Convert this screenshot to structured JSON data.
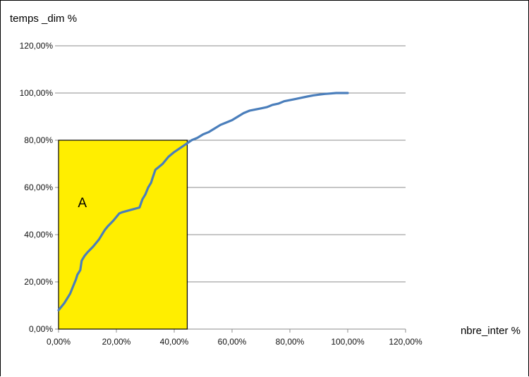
{
  "chart_data": {
    "type": "line",
    "xlabel": "nbre_inter %",
    "ylabel": "temps _dim %",
    "xlim": [
      0,
      120
    ],
    "ylim": [
      0,
      120
    ],
    "x_ticks": [
      "0,00%",
      "20,00%",
      "40,00%",
      "60,00%",
      "80,00%",
      "100,00%",
      "120,00%"
    ],
    "y_ticks": [
      "0,00%",
      "20,00%",
      "40,00%",
      "60,00%",
      "80,00%",
      "100,00%",
      "120,00%"
    ],
    "grid": "horizontal",
    "series": [
      {
        "color": "#4a7ebb",
        "x": [
          0,
          2,
          4,
          5,
          6,
          6.5,
          7.5,
          8,
          9,
          10,
          12,
          14,
          16,
          17,
          19,
          21,
          22,
          25,
          28,
          29,
          30,
          31,
          32,
          32.5,
          33.5,
          35,
          36,
          37,
          38,
          40,
          43,
          46,
          48,
          50,
          52,
          54,
          56,
          58,
          60,
          62,
          64,
          66,
          68,
          70,
          72,
          74,
          76,
          78,
          80,
          82,
          84,
          86,
          88,
          90,
          92,
          94,
          96,
          98,
          100
        ],
        "y": [
          8,
          11,
          15,
          18,
          21,
          23,
          25,
          29,
          31,
          32.5,
          35,
          38,
          42,
          43.5,
          46,
          49,
          49.5,
          50.5,
          51.5,
          55,
          57,
          60,
          62,
          64,
          67.5,
          69,
          70,
          71.5,
          73,
          75,
          77.5,
          80,
          81,
          82.5,
          83.5,
          85,
          86.5,
          87.5,
          88.5,
          90,
          91.5,
          92.5,
          93,
          93.5,
          94,
          95,
          95.5,
          96.5,
          97,
          97.5,
          98,
          98.5,
          99,
          99.3,
          99.6,
          99.8,
          100,
          100,
          100
        ]
      }
    ],
    "annotations": [
      {
        "label": "A",
        "type": "rectangle",
        "fill": "#ffee00",
        "x_from": 0,
        "x_to": 44.5,
        "y_from": 0,
        "y_to": 80
      }
    ]
  }
}
